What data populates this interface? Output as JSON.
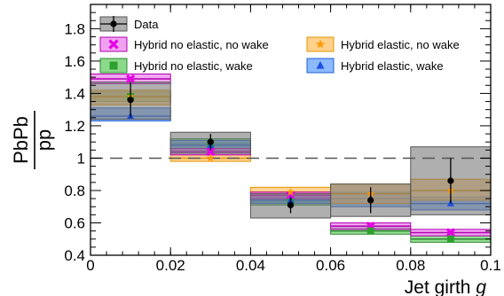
{
  "chart_data": {
    "type": "bar",
    "xlabel": "Jet girth",
    "xlabel_symbol": "g",
    "ylabel_numerator": "PbPb",
    "ylabel_denominator": "pp",
    "xlim": [
      0,
      0.1
    ],
    "ylim": [
      0.4,
      1.95
    ],
    "x_ticks": [
      0,
      0.02,
      0.04,
      0.06,
      0.08,
      0.1
    ],
    "x_tick_labels": [
      "0",
      "0.02",
      "0.04",
      "0.06",
      "0.08",
      "0.1"
    ],
    "y_ticks": [
      0.4,
      0.6,
      0.8,
      1.0,
      1.2,
      1.4,
      1.6,
      1.8
    ],
    "y_tick_labels": [
      "0.4",
      "0.6",
      "0.8",
      "1",
      "1.2",
      "1.4",
      "1.6",
      "1.8"
    ],
    "reference_line": 1.0,
    "legend_placement": "top",
    "bin_edges": [
      0,
      0.02,
      0.04,
      0.06,
      0.08,
      0.1
    ],
    "data": {
      "name": "Data",
      "x": [
        0.01,
        0.03,
        0.05,
        0.07,
        0.09
      ],
      "y": [
        1.36,
        1.1,
        0.71,
        0.74,
        0.86
      ],
      "stat_err": [
        0.11,
        0.05,
        0.05,
        0.08,
        0.14
      ],
      "sys_low": [
        1.24,
        1.03,
        0.63,
        0.64,
        0.65
      ],
      "sys_high": [
        1.47,
        1.16,
        0.78,
        0.84,
        1.07
      ]
    },
    "series": [
      {
        "name": "Hybrid no elastic, no wake",
        "marker": "cross",
        "fill_color": "#ee82ee",
        "edge_color": "#b000b0",
        "marker_color": "#e600e6",
        "values": [
          1.49,
          1.04,
          0.77,
          0.58,
          0.54
        ],
        "band_low": [
          1.46,
          1.02,
          0.75,
          0.56,
          0.52
        ],
        "band_high": [
          1.52,
          1.06,
          0.79,
          0.6,
          0.56
        ]
      },
      {
        "name": "Hybrid no elastic, wake",
        "marker": "square",
        "fill_color": "#66cc66",
        "edge_color": "#2e8b2e",
        "marker_color": "#2ea02e",
        "values": [
          1.38,
          1.09,
          0.73,
          0.55,
          0.5
        ],
        "band_low": [
          1.35,
          1.06,
          0.71,
          0.53,
          0.48
        ],
        "band_high": [
          1.41,
          1.12,
          0.75,
          0.57,
          0.52
        ]
      },
      {
        "name": "Hybrid elastic, no wake",
        "marker": "star",
        "fill_color": "#ffc266",
        "edge_color": "#e69500",
        "marker_color": "#ff9900",
        "values": [
          1.38,
          1.0,
          0.79,
          0.78,
          0.8
        ],
        "band_low": [
          1.33,
          0.98,
          0.77,
          0.72,
          0.74
        ],
        "band_high": [
          1.42,
          1.02,
          0.82,
          0.84,
          0.87
        ]
      },
      {
        "name": "Hybrid elastic, wake",
        "marker": "triangle",
        "fill_color": "#66a3ff",
        "edge_color": "#1f5fd6",
        "marker_color": "#1f4fe0",
        "values": [
          1.26,
          1.08,
          0.74,
          0.75,
          0.72
        ],
        "band_low": [
          1.23,
          1.05,
          0.72,
          0.7,
          0.68
        ],
        "band_high": [
          1.31,
          1.11,
          0.76,
          0.79,
          0.76
        ]
      }
    ]
  }
}
